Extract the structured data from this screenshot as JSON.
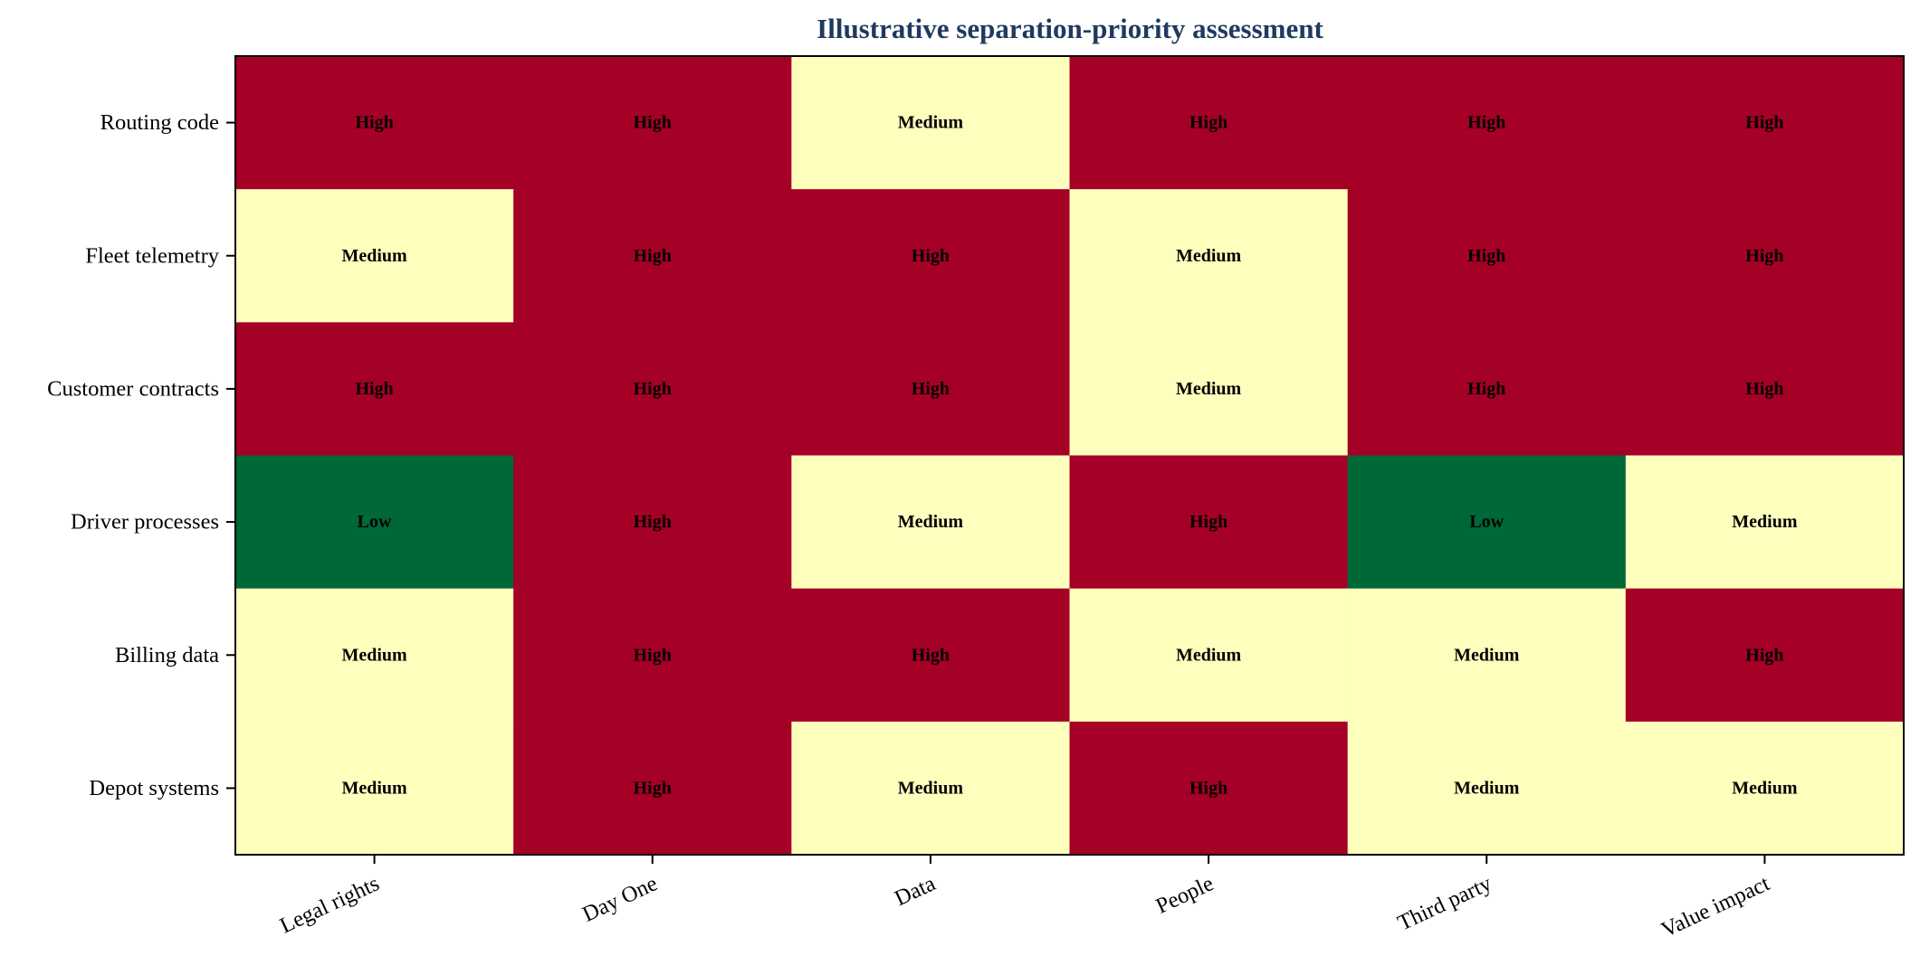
{
  "chart_data": {
    "type": "heatmap",
    "title": "Illustrative separation-priority assessment",
    "xlabel": "",
    "ylabel": "",
    "columns": [
      "Legal rights",
      "Day One",
      "Data",
      "People",
      "Third party",
      "Value impact"
    ],
    "rows": [
      "Routing code",
      "Fleet telemetry",
      "Customer contracts",
      "Driver processes",
      "Billing data",
      "Depot systems"
    ],
    "values": [
      [
        "High",
        "High",
        "Medium",
        "High",
        "High",
        "High"
      ],
      [
        "Medium",
        "High",
        "High",
        "Medium",
        "High",
        "High"
      ],
      [
        "High",
        "High",
        "High",
        "Medium",
        "High",
        "High"
      ],
      [
        "Low",
        "High",
        "Medium",
        "High",
        "Low",
        "Medium"
      ],
      [
        "Medium",
        "High",
        "High",
        "Medium",
        "Medium",
        "High"
      ],
      [
        "Medium",
        "High",
        "Medium",
        "High",
        "Medium",
        "Medium"
      ]
    ],
    "level_colors": {
      "High": "#a50026",
      "Medium": "#fefebd",
      "Low": "#006837"
    },
    "title_color": "#1f3a5f",
    "grid": false,
    "legend": "none"
  }
}
